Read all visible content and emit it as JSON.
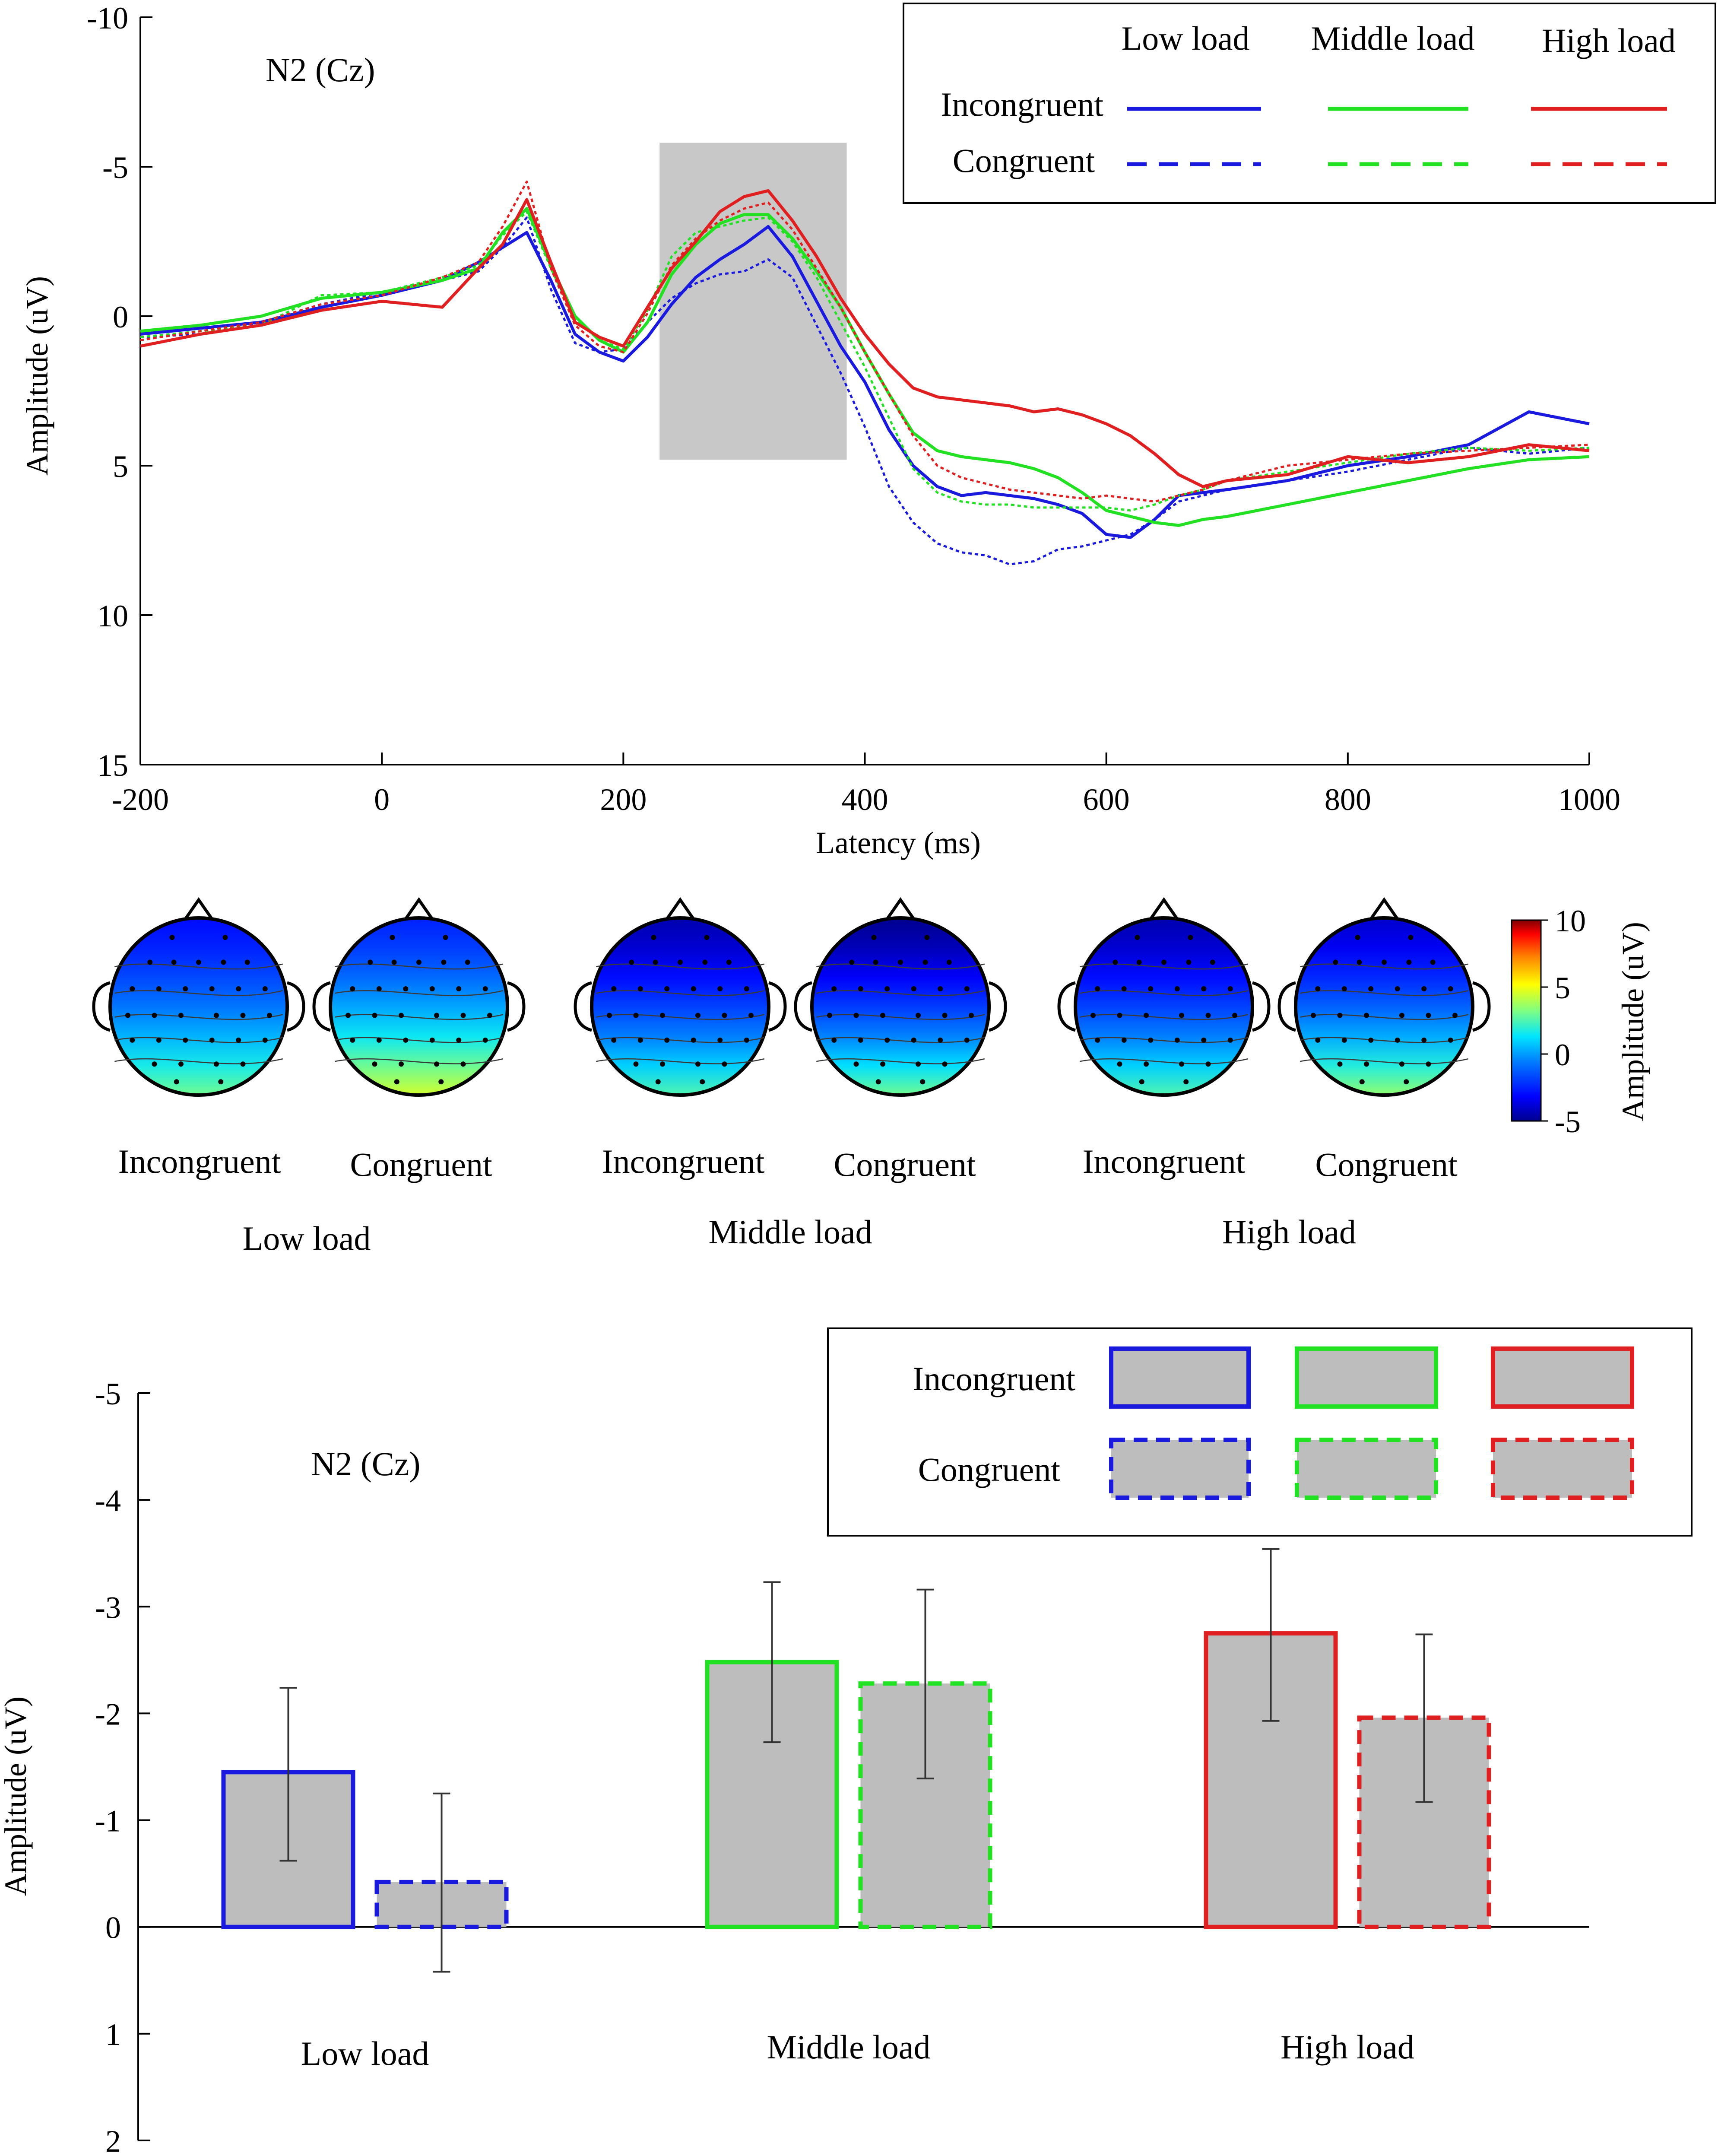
{
  "chart_data": [
    {
      "type": "line",
      "title": "N2 (Cz)",
      "xlabel": "Latency (ms)",
      "ylabel": "Amplitude (uV)",
      "xlim": [
        -200,
        1000
      ],
      "ylim": [
        -10,
        15
      ],
      "y_inverted": true,
      "xticks": [
        -200,
        0,
        200,
        400,
        600,
        800,
        1000
      ],
      "yticks": [
        -10,
        -5,
        0,
        5,
        10,
        15
      ],
      "shaded_window_ms": [
        230,
        385
      ],
      "shaded_amplitude": [
        -5.8,
        4.8
      ],
      "legend": {
        "columns": [
          "Low load",
          "Middle load",
          "High load"
        ],
        "rows": [
          "Incongruent",
          "Congruent"
        ]
      },
      "x": [
        -200,
        -150,
        -100,
        -50,
        0,
        50,
        80,
        100,
        120,
        140,
        160,
        180,
        200,
        220,
        240,
        260,
        280,
        300,
        320,
        340,
        360,
        380,
        400,
        420,
        440,
        460,
        480,
        500,
        520,
        540,
        560,
        580,
        600,
        620,
        640,
        660,
        680,
        700,
        750,
        800,
        850,
        900,
        950,
        1000
      ],
      "series": [
        {
          "name": "Low load Incongruent",
          "color": "#1a1adf",
          "style": "solid",
          "values": [
            0.6,
            0.4,
            0.2,
            -0.3,
            -0.7,
            -1.2,
            -1.8,
            -2.3,
            -2.8,
            -1.2,
            0.6,
            1.2,
            1.5,
            0.7,
            -0.4,
            -1.3,
            -1.9,
            -2.4,
            -3.0,
            -2.0,
            -0.5,
            1.0,
            2.2,
            3.8,
            5.0,
            5.7,
            6.0,
            5.9,
            6.0,
            6.1,
            6.3,
            6.6,
            7.3,
            7.4,
            6.8,
            6.0,
            5.9,
            5.8,
            5.5,
            5.0,
            4.7,
            4.3,
            3.2,
            3.6
          ]
        },
        {
          "name": "Low load Congruent",
          "color": "#1a1adf",
          "style": "dotted",
          "values": [
            0.7,
            0.6,
            0.2,
            -0.4,
            -0.8,
            -1.2,
            -1.5,
            -2.3,
            -3.3,
            -0.9,
            0.9,
            1.2,
            1.1,
            0.2,
            -0.6,
            -1.1,
            -1.4,
            -1.5,
            -1.9,
            -1.3,
            0.3,
            1.9,
            3.7,
            5.7,
            6.9,
            7.6,
            7.9,
            8.0,
            8.3,
            8.2,
            7.8,
            7.7,
            7.5,
            7.3,
            6.8,
            6.2,
            6.0,
            5.8,
            5.5,
            5.2,
            4.8,
            4.4,
            4.6,
            4.4
          ]
        },
        {
          "name": "Middle load Incongruent",
          "color": "#22e022",
          "style": "solid",
          "values": [
            0.5,
            0.3,
            0.0,
            -0.6,
            -0.8,
            -1.2,
            -1.6,
            -2.8,
            -3.6,
            -1.7,
            0.0,
            0.8,
            1.2,
            0.2,
            -1.4,
            -2.4,
            -3.1,
            -3.4,
            -3.4,
            -2.6,
            -1.5,
            -0.3,
            1.2,
            2.6,
            3.9,
            4.5,
            4.7,
            4.8,
            4.9,
            5.1,
            5.4,
            5.9,
            6.5,
            6.7,
            6.9,
            7.0,
            6.8,
            6.7,
            6.3,
            5.9,
            5.5,
            5.1,
            4.8,
            4.7
          ]
        },
        {
          "name": "Middle load Congruent",
          "color": "#22e022",
          "style": "dotted",
          "values": [
            0.7,
            0.5,
            0.3,
            -0.7,
            -0.8,
            -1.3,
            -1.7,
            -2.7,
            -3.5,
            -1.6,
            0.1,
            0.8,
            1.1,
            -0.2,
            -2.0,
            -2.8,
            -3.0,
            -3.2,
            -3.3,
            -2.5,
            -1.3,
            0.2,
            1.7,
            3.4,
            5.1,
            5.9,
            6.2,
            6.3,
            6.3,
            6.4,
            6.4,
            6.4,
            6.4,
            6.5,
            6.3,
            6.0,
            5.8,
            5.5,
            5.2,
            4.9,
            4.6,
            4.4,
            4.5,
            4.4
          ]
        },
        {
          "name": "High load Incongruent",
          "color": "#e02020",
          "style": "solid",
          "values": [
            1.0,
            0.6,
            0.3,
            -0.2,
            -0.5,
            -0.3,
            -1.6,
            -2.4,
            -3.9,
            -1.8,
            0.2,
            0.7,
            1.0,
            -0.3,
            -1.6,
            -2.5,
            -3.5,
            -4.0,
            -4.2,
            -3.2,
            -2.0,
            -0.6,
            0.6,
            1.6,
            2.4,
            2.7,
            2.8,
            2.9,
            3.0,
            3.2,
            3.1,
            3.3,
            3.6,
            4.0,
            4.6,
            5.3,
            5.7,
            5.5,
            5.3,
            4.7,
            4.9,
            4.7,
            4.3,
            4.5
          ]
        },
        {
          "name": "High load Congruent",
          "color": "#e02020",
          "style": "dotted",
          "values": [
            0.8,
            0.5,
            0.2,
            -0.4,
            -0.7,
            -1.3,
            -1.8,
            -3.0,
            -4.5,
            -1.6,
            0.3,
            1.0,
            1.2,
            -0.1,
            -1.7,
            -2.6,
            -3.2,
            -3.6,
            -3.8,
            -2.9,
            -1.6,
            -0.3,
            1.2,
            2.6,
            4.0,
            5.0,
            5.4,
            5.6,
            5.8,
            5.9,
            6.0,
            6.1,
            6.0,
            6.1,
            6.2,
            6.0,
            5.8,
            5.5,
            5.0,
            4.8,
            4.6,
            4.5,
            4.4,
            4.3
          ]
        }
      ]
    },
    {
      "type": "heatmap",
      "subtype": "scalp topographic maps",
      "colorbar_label": "Amplitude (uV)",
      "colorbar_ticks": [
        10,
        5,
        0,
        -5
      ],
      "colorbar_range": [
        -5,
        10
      ],
      "maps": [
        {
          "group": "Low load",
          "condition": "Incongruent",
          "front_amplitude": -3,
          "back_amplitude": 3
        },
        {
          "group": "Low load",
          "condition": "Congruent",
          "front_amplitude": -2.5,
          "back_amplitude": 4.5
        },
        {
          "group": "Middle load",
          "condition": "Incongruent",
          "front_amplitude": -4.5,
          "back_amplitude": 2.5
        },
        {
          "group": "Middle load",
          "condition": "Congruent",
          "front_amplitude": -5,
          "back_amplitude": 3
        },
        {
          "group": "High load",
          "condition": "Incongruent",
          "front_amplitude": -4.5,
          "back_amplitude": 2.5
        },
        {
          "group": "High load",
          "condition": "Congruent",
          "front_amplitude": -4,
          "back_amplitude": 3.5
        }
      ]
    },
    {
      "type": "bar",
      "title": "N2 (Cz)",
      "xlabel": "",
      "ylabel": "Amplitude (uV)",
      "ylim": [
        -5,
        2
      ],
      "y_inverted": true,
      "yticks": [
        -5,
        -4,
        -3,
        -2,
        -1,
        0,
        1,
        2
      ],
      "categories": [
        "Low load",
        "Middle load",
        "High load"
      ],
      "legend": {
        "rows": [
          "Incongruent",
          "Congruent"
        ]
      },
      "series": [
        {
          "name": "Incongruent",
          "style": "solid",
          "values": [
            -1.45,
            -2.48,
            -2.75
          ],
          "error_low": [
            -0.62,
            -1.73,
            -1.93
          ],
          "error_high": [
            -2.24,
            -3.23,
            -3.54
          ],
          "colors": [
            "#1a1adf",
            "#22e022",
            "#e02020"
          ]
        },
        {
          "name": "Congruent",
          "style": "dashed",
          "values": [
            -0.42,
            -2.28,
            -1.96
          ],
          "error_low": [
            0.42,
            -1.39,
            -1.17
          ],
          "error_high": [
            -1.25,
            -3.16,
            -2.74
          ],
          "colors": [
            "#1a1adf",
            "#22e022",
            "#e02020"
          ]
        }
      ]
    }
  ]
}
